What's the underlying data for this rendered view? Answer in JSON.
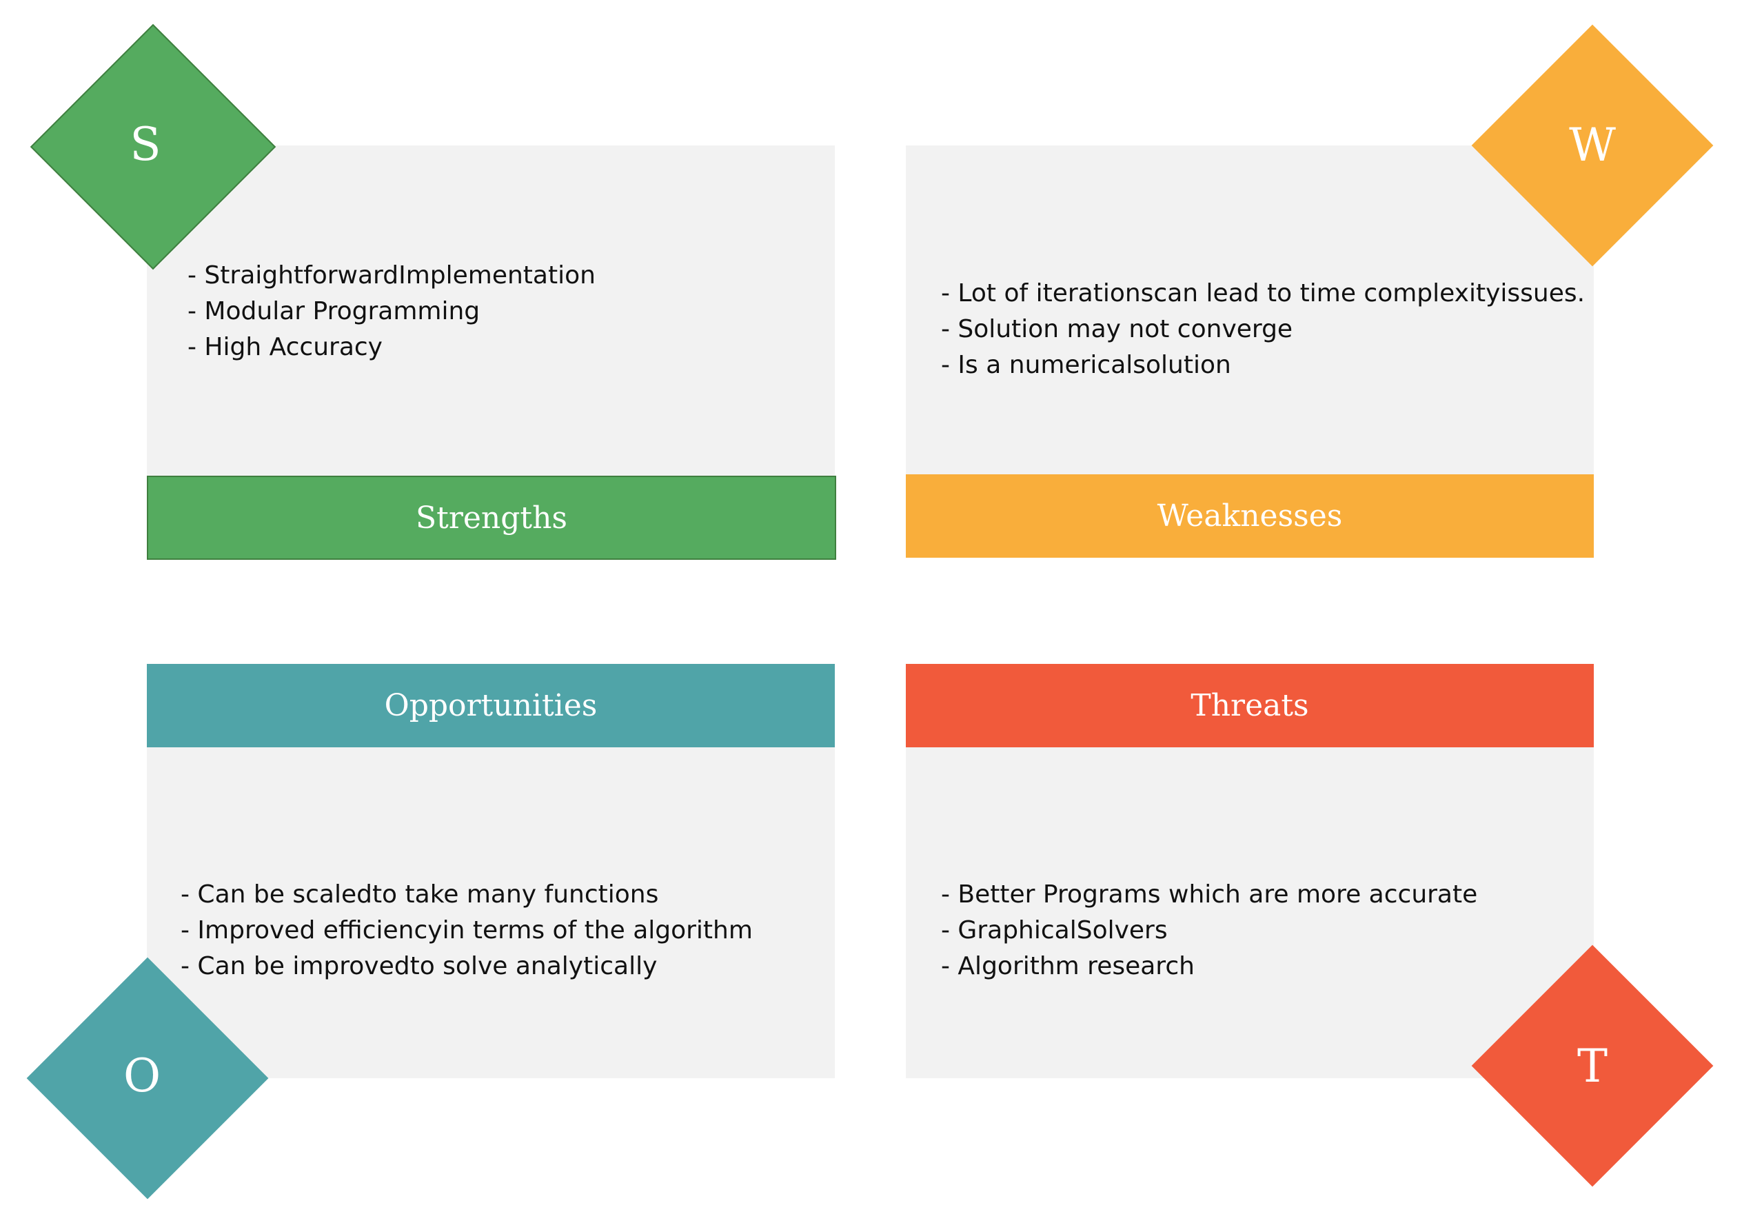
{
  "quadrants": {
    "strengths": {
      "letter": "S",
      "title": "Strengths",
      "color": "#55ab5f",
      "items": [
        "- StraightforwardImplementation",
        "- Modular Programming",
        "- High Accuracy"
      ]
    },
    "weaknesses": {
      "letter": "W",
      "title": "Weaknesses",
      "color": "#f9ae3b",
      "items": [
        "- Lot of iterationscan lead to time complexityissues.",
        "- Solution may not converge",
        "- Is a numericalsolution"
      ]
    },
    "opportunities": {
      "letter": "O",
      "title": "Opportunities",
      "color": "#50a4a8",
      "items": [
        "- Can be scaledto take many functions",
        "- Improved efficiencyin terms of the algorithm",
        "- Can be improvedto solve analytically"
      ]
    },
    "threats": {
      "letter": "T",
      "title": "Threats",
      "color": "#f15a3b",
      "items": [
        "- Better Programs which are more accurate",
        "- GraphicalSolvers",
        "- Algorithm research"
      ]
    }
  }
}
